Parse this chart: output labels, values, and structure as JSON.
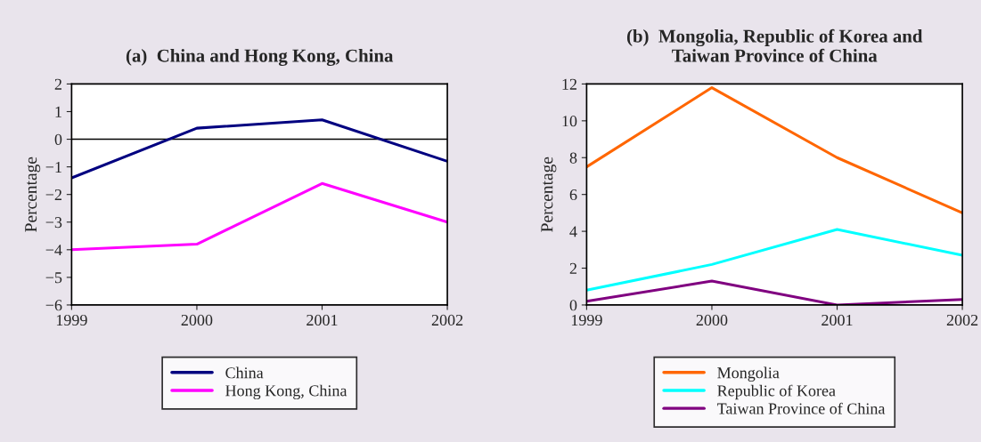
{
  "chart_data": [
    {
      "type": "line",
      "title": "(a)  China and Hong Kong, China",
      "ylabel": "Percentage",
      "x": [
        1999,
        2000,
        2001,
        2002
      ],
      "series": [
        {
          "name": "China",
          "color": "#000080",
          "values": [
            -1.4,
            0.4,
            0.7,
            -0.8
          ]
        },
        {
          "name": "Hong Kong, China",
          "color": "#ff00ff",
          "values": [
            -4.0,
            -3.8,
            -1.6,
            -3.0
          ]
        }
      ],
      "xlim": [
        1999,
        2002
      ],
      "xticks": [
        1999,
        2000,
        2001,
        2002
      ],
      "ylim": [
        -6,
        2
      ],
      "yticks": [
        -6,
        -5,
        -4,
        -3,
        -2,
        -1,
        0,
        1,
        2
      ],
      "ref_lines": [
        {
          "axis": "y",
          "value": 0,
          "color": "#000000"
        }
      ],
      "grid": false,
      "legend": "bottom"
    },
    {
      "type": "line",
      "title": "(b)  Mongolia, Republic of Korea and\nTaiwan Province of China",
      "ylabel": "Percentage",
      "x": [
        1999,
        2000,
        2001,
        2002
      ],
      "series": [
        {
          "name": "Mongolia",
          "color": "#ff6600",
          "values": [
            7.5,
            11.8,
            8.0,
            5.0
          ]
        },
        {
          "name": "Republic of Korea",
          "color": "#00ffff",
          "values": [
            0.8,
            2.2,
            4.1,
            2.7
          ]
        },
        {
          "name": "Taiwan Province of China",
          "color": "#800080",
          "values": [
            0.2,
            1.3,
            0.0,
            0.3
          ]
        }
      ],
      "xlim": [
        1999,
        2002
      ],
      "xticks": [
        1999,
        2000,
        2001,
        2002
      ],
      "ylim": [
        0,
        12
      ],
      "yticks": [
        0,
        2,
        4,
        6,
        8,
        10,
        12
      ],
      "grid": false,
      "legend": "bottom"
    }
  ]
}
